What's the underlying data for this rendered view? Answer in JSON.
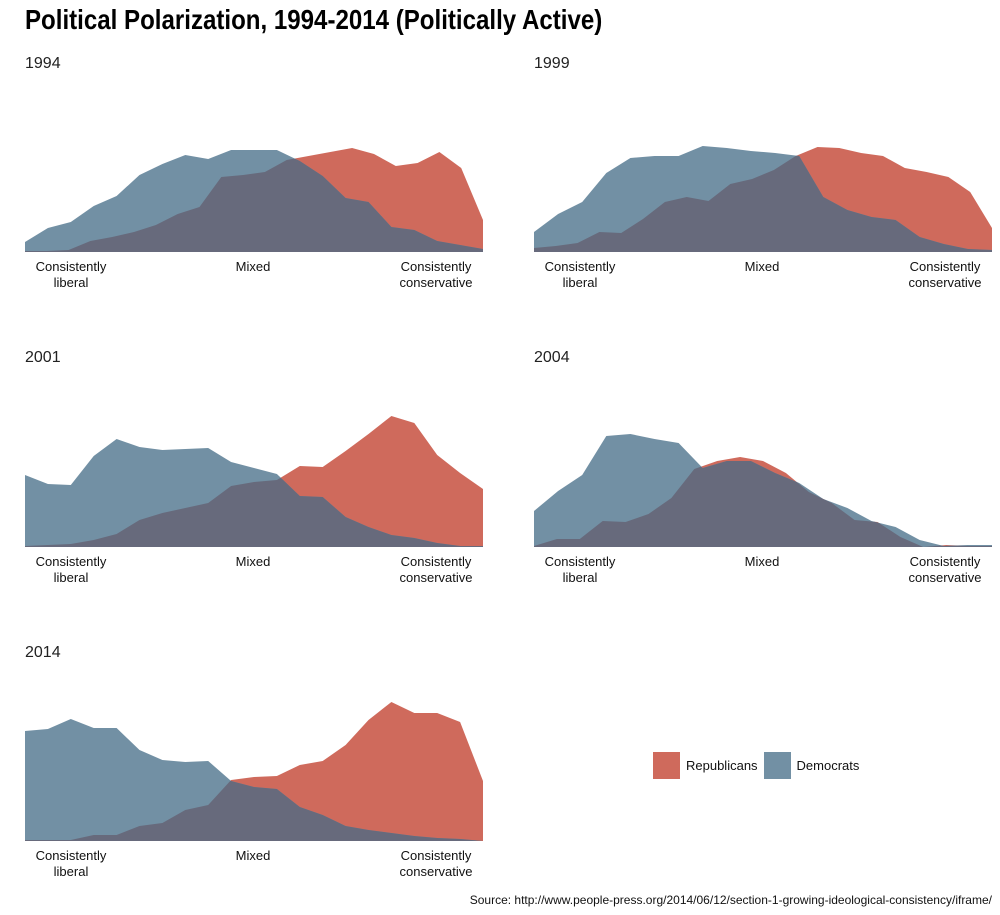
{
  "title": "Political Polarization, 1994-2014 (Politically Active)",
  "source": "Source: http://www.people-press.org/2014/06/12/section-1-growing-ideological-consistency/iframe/",
  "chart_data": {
    "type": "area",
    "x_tick_labels": [
      "Consistently\nliberal",
      "Mixed",
      "Consistently\nconservative"
    ],
    "legend": [
      "Republicans",
      "Democrats"
    ],
    "grid": false,
    "legend_position": "bottom-right",
    "colors": {
      "Republicans": "#CF6A5C",
      "Democrats": "#7290A4",
      "overlap": "#676A7C"
    },
    "panels": [
      {
        "year": "1994",
        "series": [
          {
            "name": "Democrats",
            "values": [
              10,
              24,
              30,
              46,
              56,
              77,
              88,
              97,
              93,
              102,
              102,
              102,
              91,
              76,
              54,
              50,
              25,
              22,
              11,
              7,
              3
            ]
          },
          {
            "name": "Republicans",
            "values": [
              1,
              1,
              2,
              11,
              15,
              20,
              27,
              38,
              45,
              75,
              77,
              80,
              92,
              96,
              100,
              104,
              98,
              86,
              89,
              100,
              84,
              32
            ]
          }
        ]
      },
      {
        "year": "1999",
        "series": [
          {
            "name": "Democrats",
            "values": [
              20,
              38,
              50,
              79,
              94,
              96,
              96,
              106,
              104,
              101,
              99,
              96,
              55,
              42,
              35,
              32,
              15,
              8,
              3,
              2
            ]
          },
          {
            "name": "Republicans",
            "values": [
              4,
              6,
              9,
              20,
              19,
              33,
              50,
              55,
              51,
              68,
              73,
              82,
              96,
              105,
              104,
              99,
              96,
              84,
              80,
              75,
              60,
              24
            ]
          }
        ]
      },
      {
        "year": "2001",
        "series": [
          {
            "name": "Democrats",
            "values": [
              72,
              63,
              62,
              91,
              108,
              100,
              97,
              98,
              99,
              85,
              79,
              73,
              51,
              50,
              30,
              20,
              12,
              9,
              4,
              1,
              1
            ]
          },
          {
            "name": "Republicans",
            "values": [
              1,
              2,
              3,
              7,
              13,
              27,
              34,
              39,
              44,
              61,
              65,
              67,
              81,
              80,
              96,
              113,
              131,
              124,
              92,
              74,
              58
            ]
          }
        ]
      },
      {
        "year": "2004",
        "series": [
          {
            "name": "Democrats",
            "values": [
              36,
              56,
              72,
              111,
              113,
              108,
              104,
              79,
              86,
              86,
              74,
              64,
              48,
              39,
              26,
              20,
              7,
              1,
              2,
              2
            ]
          },
          {
            "name": "Republicans",
            "values": [
              1,
              8,
              8,
              26,
              25,
              33,
              49,
              78,
              86,
              90,
              86,
              74,
              55,
              44,
              27,
              25,
              10,
              0,
              2,
              1,
              1
            ]
          }
        ]
      },
      {
        "year": "2014",
        "series": [
          {
            "name": "Democrats",
            "values": [
              110,
              112,
              122,
              113,
              113,
              91,
              81,
              79,
              80,
              60,
              54,
              52,
              34,
              26,
              15,
              11,
              8,
              5,
              3,
              2,
              0
            ]
          },
          {
            "name": "Republicans",
            "values": [
              1,
              1,
              1,
              6,
              6,
              15,
              18,
              31,
              36,
              61,
              64,
              65,
              76,
              80,
              96,
              121,
              139,
              128,
              128,
              119,
              60
            ]
          }
        ]
      }
    ]
  }
}
